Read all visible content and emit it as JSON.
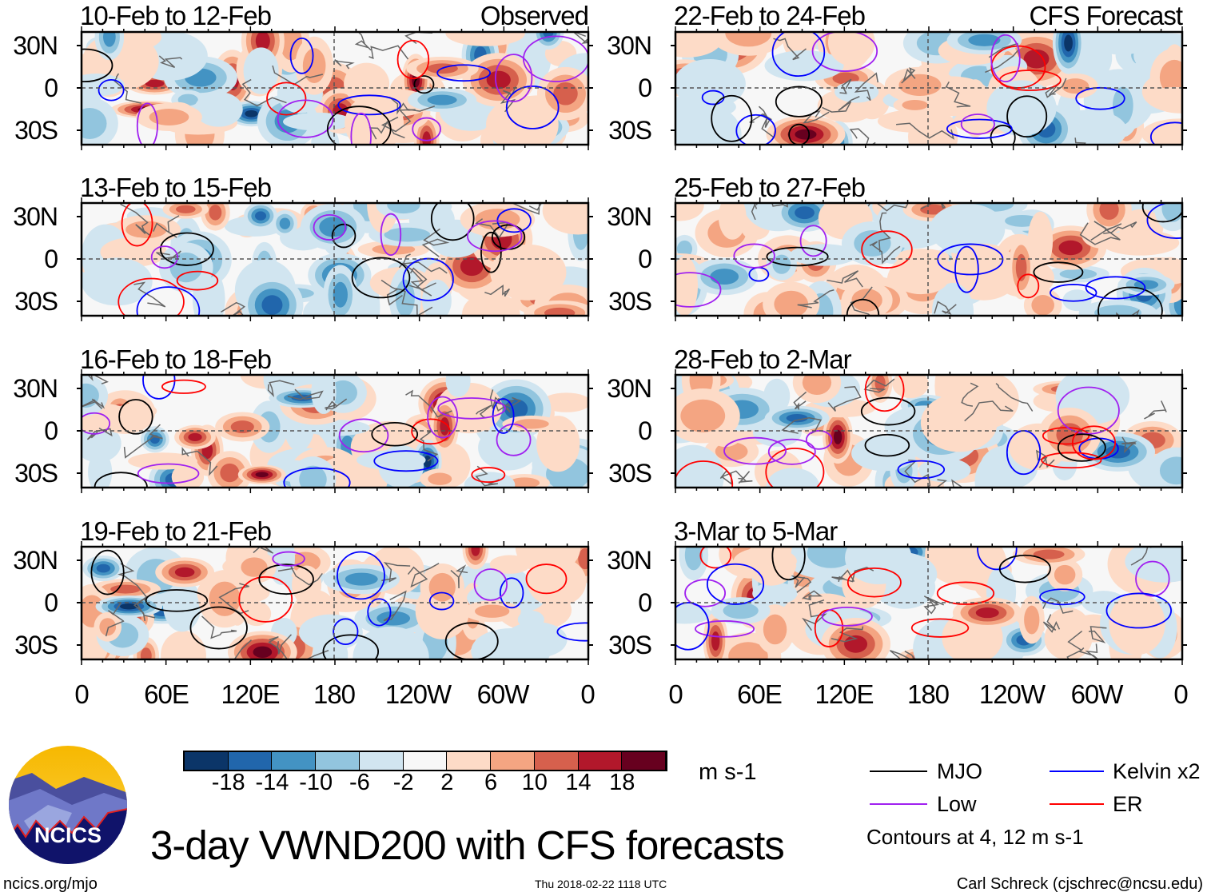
{
  "left_column_label": "Observed",
  "right_column_label": "CFS Forecast",
  "panels_left": [
    "10-Feb to 12-Feb",
    "13-Feb to 15-Feb",
    "16-Feb to 18-Feb",
    "19-Feb to 21-Feb"
  ],
  "panels_right": [
    "22-Feb to 24-Feb",
    "25-Feb to 27-Feb",
    "28-Feb to 2-Mar",
    "3-Mar to 5-Mar"
  ],
  "lat_labels": [
    "30N",
    "0",
    "30S"
  ],
  "lon_labels": [
    "0",
    "60E",
    "120E",
    "180",
    "120W",
    "60W",
    "0"
  ],
  "colorbar": {
    "colors": [
      "#0b3568",
      "#2166ac",
      "#4393c3",
      "#92c5de",
      "#d1e5f0",
      "#f7f7f7",
      "#fddbc7",
      "#f4a582",
      "#d6604d",
      "#b2182b",
      "#67001f"
    ],
    "labels": [
      "-18",
      "-14",
      "-10",
      "-6",
      "-2",
      "2",
      "6",
      "10",
      "14",
      "18"
    ],
    "units": "m s-1"
  },
  "legend": {
    "items": [
      {
        "label": "MJO",
        "color": "#000000"
      },
      {
        "label": "Kelvin x2",
        "color": "#0000ff"
      },
      {
        "label": "Low",
        "color": "#a020f0"
      },
      {
        "label": "ER",
        "color": "#ff0000"
      }
    ],
    "note": "Contours at 4, 12 m s-1"
  },
  "logo_text": "NCICS",
  "title": "3-day VWND200 with CFS forecasts",
  "footer": {
    "url": "ncics.org/mjo",
    "timestamp": "Thu 2018-02-22 1118 UTC",
    "author": "Carl Schreck (cjschrec@ncsu.edu)"
  }
}
